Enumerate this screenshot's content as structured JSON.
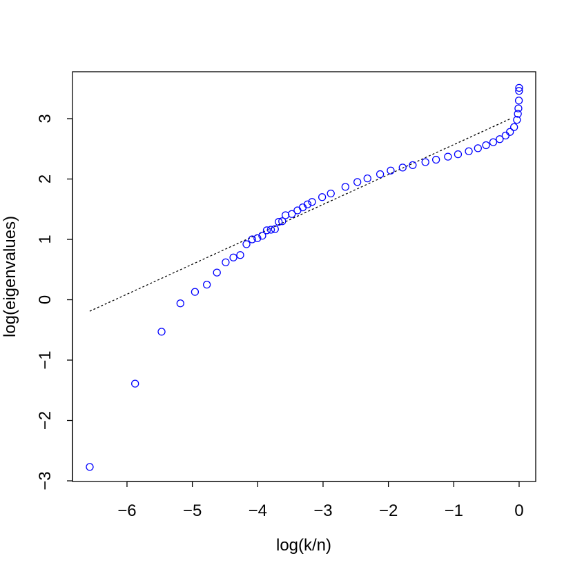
{
  "chart_data": {
    "type": "scatter",
    "x_label": "log(k/n)",
    "y_label": "log(eigenvalues)",
    "xlim": [
      -6.834,
      0.254
    ],
    "ylim": [
      -3.011,
      3.777
    ],
    "xticks": [
      {
        "value": -6,
        "label": "−6"
      },
      {
        "value": -5,
        "label": "−5"
      },
      {
        "value": -4,
        "label": "−4"
      },
      {
        "value": -3,
        "label": "−3"
      },
      {
        "value": -2,
        "label": "−2"
      },
      {
        "value": -1,
        "label": "−1"
      },
      0
    ],
    "yticks": [
      {
        "value": -3,
        "label": "−3"
      },
      {
        "value": -2,
        "label": "−2"
      },
      {
        "value": -1,
        "label": "−1"
      },
      0,
      1,
      2,
      3
    ],
    "points": {
      "color": "#0000ff",
      "x": [
        -6.57,
        -5.876,
        -5.471,
        -5.183,
        -4.96,
        -4.778,
        -4.624,
        -4.49,
        -4.372,
        -4.267,
        -4.172,
        -4.085,
        -4.005,
        -3.93,
        -3.861,
        -3.797,
        -3.736,
        -3.679,
        -3.625,
        -3.574,
        -3.478,
        -3.391,
        -3.311,
        -3.237,
        -3.168,
        -3.014,
        -2.881,
        -2.658,
        -2.475,
        -2.321,
        -2.127,
        -1.965,
        -1.782,
        -1.628,
        -1.434,
        -1.271,
        -1.089,
        -0.935,
        -0.77,
        -0.63,
        -0.506,
        -0.396,
        -0.297,
        -0.207,
        -0.14,
        -0.077,
        -0.033,
        -0.019,
        -0.011,
        -0.004,
        -0.001,
        0
      ],
      "values": [
        -2.77,
        -1.39,
        -0.53,
        -0.06,
        0.13,
        0.25,
        0.45,
        0.62,
        0.7,
        0.74,
        0.92,
        1.0,
        1.02,
        1.06,
        1.15,
        1.16,
        1.17,
        1.29,
        1.3,
        1.4,
        1.42,
        1.48,
        1.53,
        1.58,
        1.62,
        1.7,
        1.76,
        1.87,
        1.95,
        2.01,
        2.08,
        2.14,
        2.19,
        2.23,
        2.28,
        2.32,
        2.37,
        2.41,
        2.46,
        2.51,
        2.56,
        2.61,
        2.66,
        2.72,
        2.78,
        2.86,
        2.98,
        3.08,
        3.17,
        3.3,
        3.46,
        3.51
      ]
    },
    "reference_line": {
      "color": "#000000",
      "dashed": true,
      "x": [
        -6.57,
        -0.13
      ],
      "values": [
        -0.19,
        3.0
      ]
    }
  }
}
